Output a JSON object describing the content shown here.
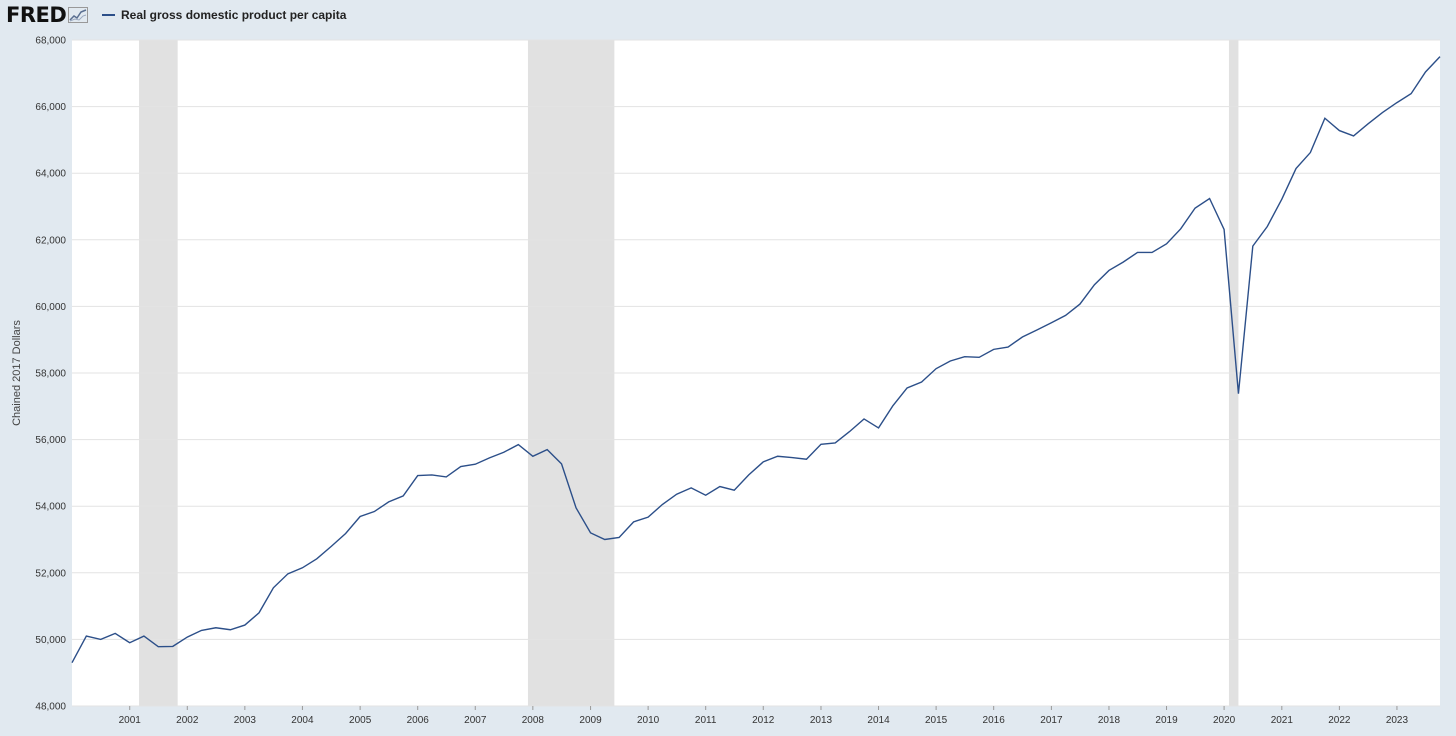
{
  "header": {
    "logo_text": "FRED",
    "logo_icon": "fred-chart-icon",
    "legend_label": "Real gross domestic product per capita"
  },
  "colors": {
    "page_background": "#e1e9f0",
    "plot_background": "#ffffff",
    "series_line": "#2c4f89",
    "recession_band": "#e1e1e1",
    "gridline": "#e3e3e3"
  },
  "chart_data": {
    "type": "line",
    "title": "",
    "xlabel": "",
    "ylabel": "Chained 2017 Dollars",
    "legend": "top-left",
    "grid": true,
    "ylim": [
      48000,
      68000
    ],
    "xlim": [
      "2000-01-01",
      "2023-10-01"
    ],
    "y_ticks": [
      48000,
      50000,
      52000,
      54000,
      56000,
      58000,
      60000,
      62000,
      64000,
      66000,
      68000
    ],
    "y_tick_labels": [
      "48,000",
      "50,000",
      "52,000",
      "54,000",
      "56,000",
      "58,000",
      "60,000",
      "62,000",
      "64,000",
      "66,000",
      "68,000"
    ],
    "x_tick_labels": [
      "2001",
      "2002",
      "2003",
      "2004",
      "2005",
      "2006",
      "2007",
      "2008",
      "2009",
      "2010",
      "2011",
      "2012",
      "2013",
      "2014",
      "2015",
      "2016",
      "2017",
      "2018",
      "2019",
      "2020",
      "2021",
      "2022",
      "2023"
    ],
    "recessions": [
      {
        "start": "2001-03-01",
        "end": "2001-11-01"
      },
      {
        "start": "2007-12-01",
        "end": "2009-06-01"
      },
      {
        "start": "2020-02-01",
        "end": "2020-04-01"
      }
    ],
    "series": [
      {
        "name": "Real gross domestic product per capita",
        "x": [
          "2000-01-01",
          "2000-04-01",
          "2000-07-01",
          "2000-10-01",
          "2001-01-01",
          "2001-04-01",
          "2001-07-01",
          "2001-10-01",
          "2002-01-01",
          "2002-04-01",
          "2002-07-01",
          "2002-10-01",
          "2003-01-01",
          "2003-04-01",
          "2003-07-01",
          "2003-10-01",
          "2004-01-01",
          "2004-04-01",
          "2004-07-01",
          "2004-10-01",
          "2005-01-01",
          "2005-04-01",
          "2005-07-01",
          "2005-10-01",
          "2006-01-01",
          "2006-04-01",
          "2006-07-01",
          "2006-10-01",
          "2007-01-01",
          "2007-04-01",
          "2007-07-01",
          "2007-10-01",
          "2008-01-01",
          "2008-04-01",
          "2008-07-01",
          "2008-10-01",
          "2009-01-01",
          "2009-04-01",
          "2009-07-01",
          "2009-10-01",
          "2010-01-01",
          "2010-04-01",
          "2010-07-01",
          "2010-10-01",
          "2011-01-01",
          "2011-04-01",
          "2011-07-01",
          "2011-10-01",
          "2012-01-01",
          "2012-04-01",
          "2012-07-01",
          "2012-10-01",
          "2013-01-01",
          "2013-04-01",
          "2013-07-01",
          "2013-10-01",
          "2014-01-01",
          "2014-04-01",
          "2014-07-01",
          "2014-10-01",
          "2015-01-01",
          "2015-04-01",
          "2015-07-01",
          "2015-10-01",
          "2016-01-01",
          "2016-04-01",
          "2016-07-01",
          "2016-10-01",
          "2017-01-01",
          "2017-04-01",
          "2017-07-01",
          "2017-10-01",
          "2018-01-01",
          "2018-04-01",
          "2018-07-01",
          "2018-10-01",
          "2019-01-01",
          "2019-04-01",
          "2019-07-01",
          "2019-10-01",
          "2020-01-01",
          "2020-04-01",
          "2020-07-01",
          "2020-10-01",
          "2021-01-01",
          "2021-04-01",
          "2021-07-01",
          "2021-10-01",
          "2022-01-01",
          "2022-04-01",
          "2022-07-01",
          "2022-10-01",
          "2023-01-01",
          "2023-04-01",
          "2023-07-01",
          "2023-10-01"
        ],
        "values": [
          49300,
          50100,
          50000,
          50180,
          49900,
          50100,
          49780,
          49790,
          50070,
          50270,
          50350,
          50290,
          50430,
          50800,
          51550,
          51970,
          52150,
          52420,
          52790,
          53180,
          53690,
          53840,
          54130,
          54310,
          54920,
          54940,
          54880,
          55190,
          55260,
          55450,
          55620,
          55850,
          55500,
          55700,
          55270,
          53950,
          53200,
          53000,
          53060,
          53530,
          53670,
          54050,
          54360,
          54550,
          54330,
          54590,
          54480,
          54940,
          55330,
          55500,
          55460,
          55410,
          55860,
          55900,
          56240,
          56620,
          56350,
          57010,
          57550,
          57730,
          58130,
          58360,
          58490,
          58470,
          58710,
          58780,
          59080,
          59290,
          59510,
          59730,
          60070,
          60650,
          61080,
          61330,
          61620,
          61620,
          61880,
          62330,
          62950,
          63240,
          62310,
          57380,
          61810,
          62400,
          63220,
          64140,
          64620,
          65650,
          65280,
          65120,
          65480,
          65820,
          66120,
          66390,
          67040,
          67500
        ]
      }
    ]
  }
}
